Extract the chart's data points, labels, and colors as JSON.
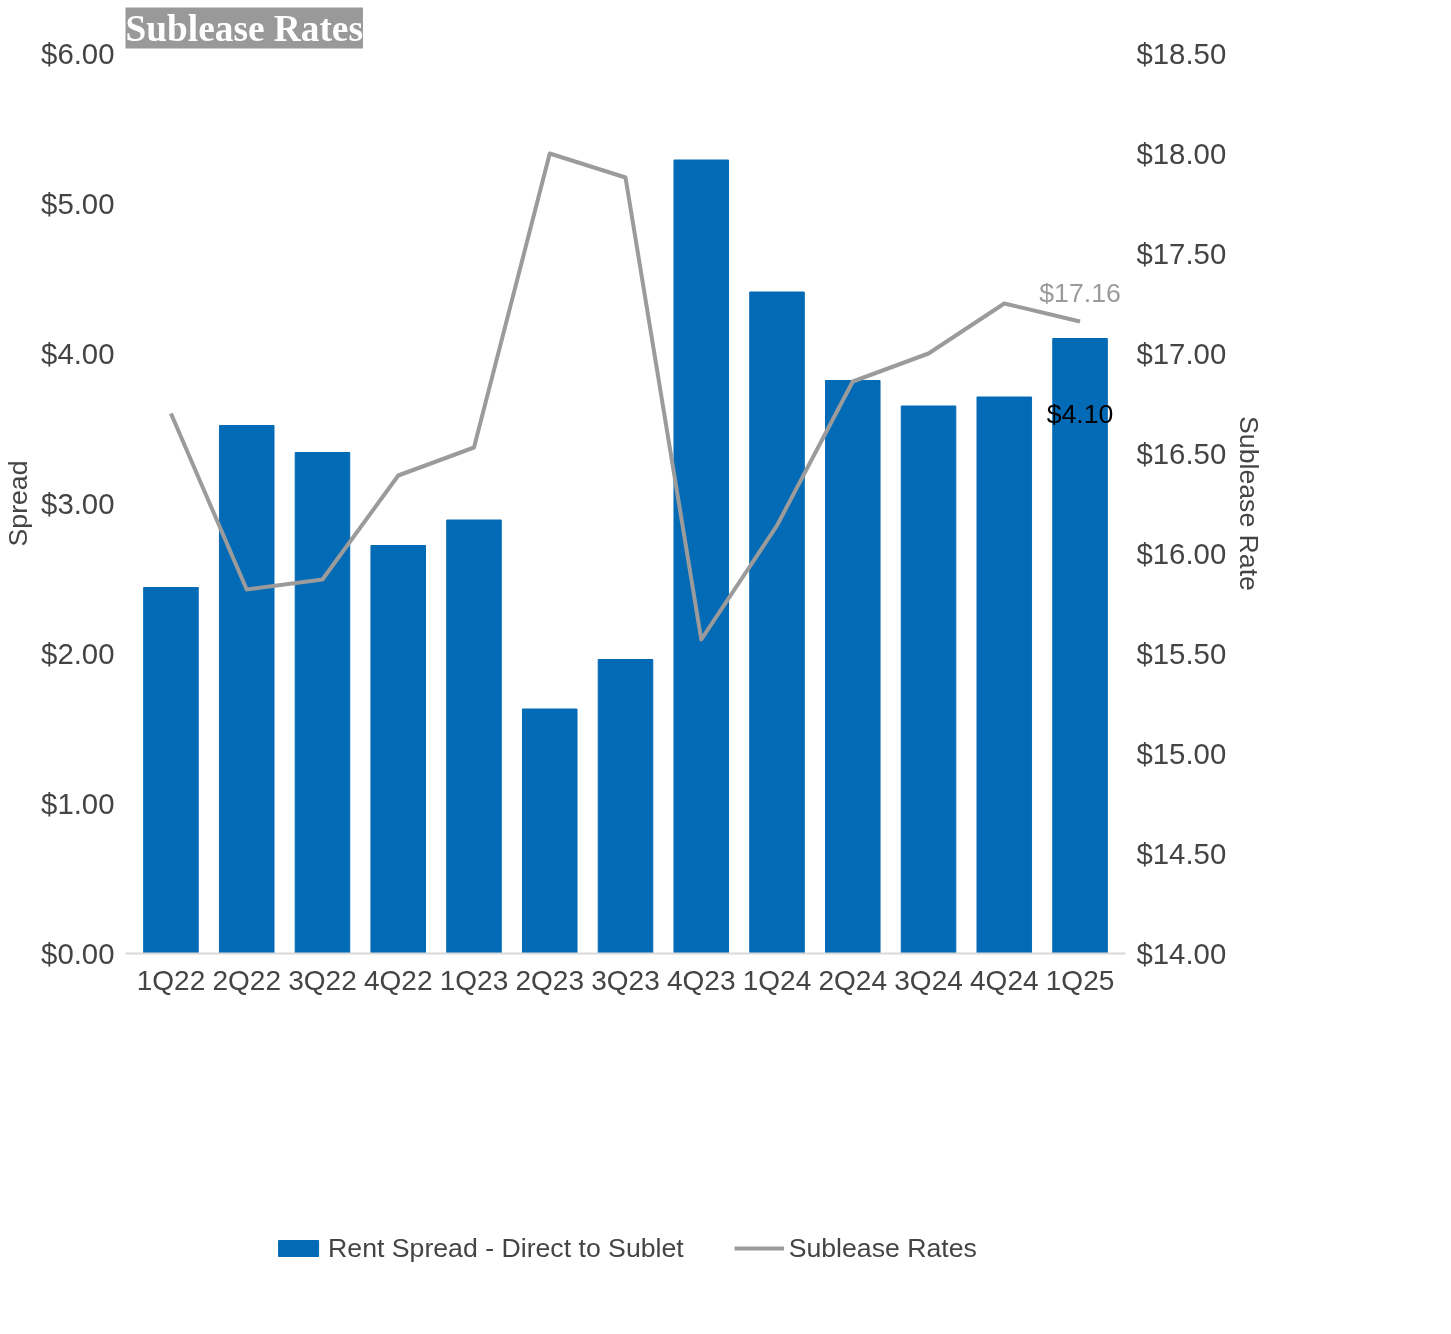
{
  "chart_data": {
    "type": "bar",
    "title": "Sublease Rates",
    "ylabel": "Spread",
    "y2label": "Sublease Rate",
    "categories": [
      "1Q22",
      "2Q22",
      "3Q22",
      "4Q22",
      "1Q23",
      "2Q23",
      "3Q23",
      "4Q23",
      "1Q24",
      "2Q24",
      "3Q24",
      "4Q24",
      "1Q25"
    ],
    "series": [
      {
        "name": "Rent Spread - Direct to Sublet",
        "color": "#036ab5",
        "values": [
          2.44,
          3.52,
          3.34,
          2.72,
          2.89,
          1.63,
          1.96,
          5.29,
          4.41,
          3.82,
          3.65,
          3.71,
          4.1
        ],
        "value_labels": [
          null,
          null,
          null,
          null,
          null,
          null,
          null,
          null,
          null,
          null,
          null,
          null,
          "$4.10"
        ]
      },
      {
        "name": "Sublease Rates",
        "type": "line",
        "axis": "y2",
        "color": "#9b9b9b",
        "values": [
          16.7,
          15.82,
          15.87,
          16.39,
          16.53,
          18.0,
          17.88,
          15.57,
          16.14,
          16.86,
          17.0,
          17.25,
          17.16
        ],
        "value_labels": [
          null,
          null,
          null,
          null,
          null,
          null,
          null,
          null,
          null,
          null,
          null,
          null,
          "$17.16"
        ]
      }
    ],
    "ylim": [
      0,
      6
    ],
    "yticks": [
      {
        "value": 0,
        "label": "$0.00"
      },
      {
        "value": 1,
        "label": "$1.00"
      },
      {
        "value": 2,
        "label": "$2.00"
      },
      {
        "value": 3,
        "label": "$3.00"
      },
      {
        "value": 4,
        "label": "$4.00"
      },
      {
        "value": 5,
        "label": "$5.00"
      },
      {
        "value": 6,
        "label": "$6.00"
      }
    ],
    "y2lim": [
      14,
      18.5
    ],
    "y2ticks": [
      {
        "value": 14,
        "label": "$14.00"
      },
      {
        "value": 14.5,
        "label": "$14.50"
      },
      {
        "value": 15,
        "label": "$15.00"
      },
      {
        "value": 15.5,
        "label": "$15.50"
      },
      {
        "value": 16,
        "label": "$16.00"
      },
      {
        "value": 16.5,
        "label": "$16.50"
      },
      {
        "value": 17,
        "label": "$17.00"
      },
      {
        "value": 17.5,
        "label": "$17.50"
      },
      {
        "value": 18,
        "label": "$18.00"
      },
      {
        "value": 18.5,
        "label": "$18.50"
      }
    ],
    "grid": false,
    "legend": "bottom",
    "line_style": "solid",
    "marker": "none"
  }
}
